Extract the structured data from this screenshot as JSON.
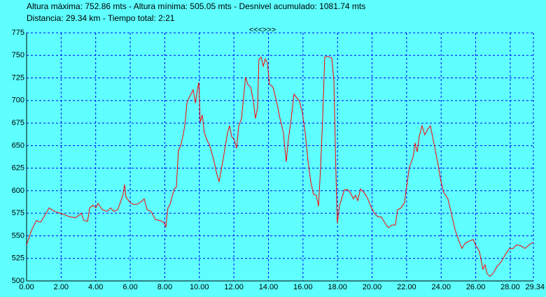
{
  "chart_data": {
    "type": "line",
    "title": "Altura máxima: 752.86 mts - Altura mínima: 505.05 mts - Desnivel acumulado: 1081.74 mts",
    "subtitle": "Distancia: 29.34 km - Tiempo total: 2:21",
    "nav_label": "<<<>>>",
    "color": "#ff0000",
    "grid": true,
    "grid_color": "#0000ff",
    "x": [
      0,
      0.28,
      0.57,
      0.81,
      1.13,
      1.3,
      1.62,
      2.11,
      2.51,
      2.84,
      3.16,
      3.32,
      3.53,
      3.65,
      3.85,
      4.01,
      4.13,
      4.38,
      4.66,
      4.86,
      5.06,
      5.27,
      5.43,
      5.59,
      5.67,
      5.75,
      5.99,
      6.16,
      6.4,
      6.65,
      6.81,
      6.97,
      7.21,
      7.46,
      7.7,
      7.94,
      8.06,
      8.18,
      8.31,
      8.43,
      8.55,
      8.67,
      8.79,
      8.91,
      9.04,
      9.16,
      9.28,
      9.4,
      9.52,
      9.64,
      9.77,
      9.89,
      9.97,
      10.05,
      10.17,
      10.29,
      10.45,
      10.62,
      10.82,
      11.02,
      11.14,
      11.26,
      11.43,
      11.63,
      11.75,
      11.87,
      12.03,
      12.16,
      12.28,
      12.44,
      12.56,
      12.68,
      12.8,
      12.97,
      13.13,
      13.25,
      13.37,
      13.45,
      13.58,
      13.7,
      13.82,
      13.94,
      14.06,
      14.26,
      14.47,
      14.67,
      14.87,
      15.03,
      15.15,
      15.32,
      15.48,
      15.64,
      15.8,
      15.96,
      16.13,
      16.29,
      16.45,
      16.61,
      16.77,
      16.9,
      17.02,
      17.14,
      17.26,
      17.42,
      17.67,
      17.79,
      17.91,
      17.99,
      18.11,
      18.27,
      18.4,
      18.6,
      18.76,
      18.92,
      19.04,
      19.17,
      19.33,
      19.53,
      19.73,
      19.94,
      20.14,
      20.34,
      20.54,
      20.75,
      20.95,
      21.15,
      21.35,
      21.48,
      21.68,
      21.88,
      22.04,
      22.16,
      22.37,
      22.49,
      22.61,
      22.73,
      22.89,
      23.05,
      23.22,
      23.38,
      23.5,
      23.66,
      23.82,
      23.99,
      24.15,
      24.39,
      24.59,
      24.8,
      25,
      25.2,
      25.4,
      25.61,
      25.85,
      26.01,
      26.21,
      26.42,
      26.54,
      26.66,
      26.82,
      27.03,
      27.23,
      27.47,
      27.71,
      27.96,
      28.16,
      28.36,
      28.61,
      28.85,
      29.09,
      29.34
    ],
    "values": [
      540,
      556,
      567,
      565,
      575,
      581,
      577,
      574,
      571,
      570,
      575,
      567,
      566,
      581,
      584,
      581,
      586,
      579,
      577,
      581,
      577,
      579,
      587,
      596,
      607,
      593,
      587,
      585,
      585,
      588,
      591,
      579,
      577,
      568,
      567,
      565,
      560,
      581,
      585,
      594,
      602,
      604,
      645,
      649,
      660,
      672,
      697,
      703,
      707,
      712,
      697,
      712,
      720,
      676,
      684,
      664,
      656,
      649,
      635,
      618,
      610,
      622,
      641,
      664,
      672,
      660,
      656,
      647,
      672,
      680,
      703,
      726,
      718,
      715,
      699,
      680,
      692,
      746,
      748,
      738,
      746,
      742,
      718,
      715,
      699,
      680,
      664,
      632,
      656,
      680,
      707,
      703,
      699,
      687,
      664,
      633,
      610,
      596,
      595,
      583,
      626,
      680,
      748,
      749,
      747,
      722,
      618,
      564,
      583,
      593,
      601,
      601,
      597,
      591,
      595,
      589,
      602,
      598,
      592,
      582,
      575,
      571,
      571,
      564,
      559,
      562,
      562,
      579,
      581,
      587,
      610,
      626,
      637,
      653,
      643,
      660,
      672,
      662,
      668,
      672,
      660,
      645,
      629,
      610,
      598,
      591,
      575,
      557,
      546,
      536,
      542,
      544,
      546,
      539,
      533,
      513,
      518,
      508,
      505,
      509,
      516,
      521,
      529,
      536,
      536,
      540,
      539,
      536,
      540,
      543
    ],
    "xlim": [
      0,
      29.34
    ],
    "xticks": [
      {
        "value": 0,
        "label": "0.00"
      },
      {
        "value": 2,
        "label": "2.00"
      },
      {
        "value": 4,
        "label": "4.00"
      },
      {
        "value": 6,
        "label": "6.00"
      },
      {
        "value": 8,
        "label": "8.00"
      },
      {
        "value": 10,
        "label": "10.00"
      },
      {
        "value": 12,
        "label": "12.00"
      },
      {
        "value": 14,
        "label": "14.00"
      },
      {
        "value": 16,
        "label": "16.00"
      },
      {
        "value": 18,
        "label": "18.00"
      },
      {
        "value": 20,
        "label": "20.00"
      },
      {
        "value": 22,
        "label": "22.00"
      },
      {
        "value": 24,
        "label": "24.00"
      },
      {
        "value": 26,
        "label": "26.00"
      },
      {
        "value": 28,
        "label": "28.00"
      },
      29.34
    ],
    "ylim": [
      500,
      775
    ],
    "yticks": [
      500,
      525,
      550,
      575,
      600,
      625,
      650,
      675,
      700,
      725,
      750,
      775
    ]
  }
}
